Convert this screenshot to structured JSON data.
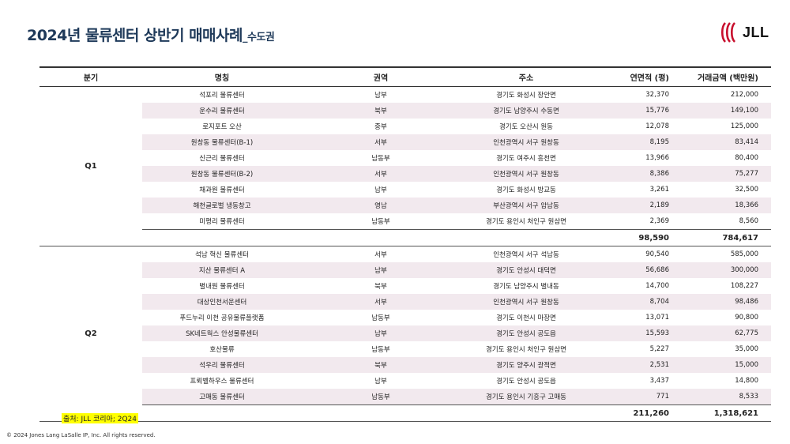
{
  "header": {
    "title": "2024년 물류센터 상반기 매매사례",
    "subtitle": "_수도권",
    "logo_text": "JLL",
    "brand_color": "#c8102e"
  },
  "table": {
    "columns": [
      "분기",
      "명칭",
      "권역",
      "주소",
      "연면적 (평)",
      "거래금액 (백만원)"
    ],
    "groups": [
      {
        "quarter": "Q1",
        "rows": [
          {
            "name": "석포리 물류센터",
            "region": "남부",
            "address": "경기도 화성시 장안면",
            "area": "32,370",
            "amount": "212,000"
          },
          {
            "name": "운수리 물류센터",
            "region": "북부",
            "address": "경기도 남양주시 수동면",
            "area": "15,776",
            "amount": "149,100"
          },
          {
            "name": "로지포트 오산",
            "region": "중부",
            "address": "경기도 오산시 원동",
            "area": "12,078",
            "amount": "125,000"
          },
          {
            "name": "원창동 물류센터(B-1)",
            "region": "서부",
            "address": "인천광역시 서구 원창동",
            "area": "8,195",
            "amount": "83,414"
          },
          {
            "name": "신근리 물류센터",
            "region": "남동부",
            "address": "경기도 여주시 흥천면",
            "area": "13,966",
            "amount": "80,400"
          },
          {
            "name": "원창동 물류센터(B-2)",
            "region": "서부",
            "address": "인천광역시 서구 원창동",
            "area": "8,386",
            "amount": "75,277"
          },
          {
            "name": "채과원 물류센터",
            "region": "남부",
            "address": "경기도 화성시 방교동",
            "area": "3,261",
            "amount": "32,500"
          },
          {
            "name": "해천글로벌 냉동창고",
            "region": "영남",
            "address": "부산광역시 서구 암남동",
            "area": "2,189",
            "amount": "18,366"
          },
          {
            "name": "미평리 물류센터",
            "region": "남동부",
            "address": "경기도 용인시 처인구 원삼면",
            "area": "2,369",
            "amount": "8,560"
          }
        ],
        "total_area": "98,590",
        "total_amount": "784,617"
      },
      {
        "quarter": "Q2",
        "rows": [
          {
            "name": "석남 혁신 물류센터",
            "region": "서부",
            "address": "인천광역시 서구 석남동",
            "area": "90,540",
            "amount": "585,000"
          },
          {
            "name": "지산 물류센터 A",
            "region": "남부",
            "address": "경기도 안성시 대덕면",
            "area": "56,686",
            "amount": "300,000"
          },
          {
            "name": "별내원 물류센터",
            "region": "북부",
            "address": "경기도 남양주시 별내동",
            "area": "14,700",
            "amount": "108,227"
          },
          {
            "name": "대상인천서운센터",
            "region": "서부",
            "address": "인천광역시 서구 원창동",
            "area": "8,704",
            "amount": "98,486"
          },
          {
            "name": "푸드누리 이천 공유물류플랫폼",
            "region": "남동부",
            "address": "경기도 이천시 마장면",
            "area": "13,071",
            "amount": "90,800"
          },
          {
            "name": "SK네트웍스 안성물류센터",
            "region": "남부",
            "address": "경기도 안성시 공도읍",
            "area": "15,593",
            "amount": "62,775"
          },
          {
            "name": "호산물류",
            "region": "남동부",
            "address": "경기도 용인시 처인구 원삼면",
            "area": "5,227",
            "amount": "35,000"
          },
          {
            "name": "석우리 물류센터",
            "region": "북부",
            "address": "경기도 양주시 광적면",
            "area": "2,531",
            "amount": "15,000"
          },
          {
            "name": "프뢰벨하우스 물류센터",
            "region": "남부",
            "address": "경기도 안성시 공도읍",
            "area": "3,437",
            "amount": "14,800"
          },
          {
            "name": "고매동 물류센터",
            "region": "남동부",
            "address": "경기도 용인시 기흥구 고매동",
            "area": "771",
            "amount": "8,533"
          }
        ],
        "total_area": "211,260",
        "total_amount": "1,318,621"
      }
    ]
  },
  "footer": {
    "source": "출처: JLL 코리아; 2Q24",
    "copyright": "© 2024 Jones Lang LaSalle IP, Inc. All rights reserved."
  }
}
